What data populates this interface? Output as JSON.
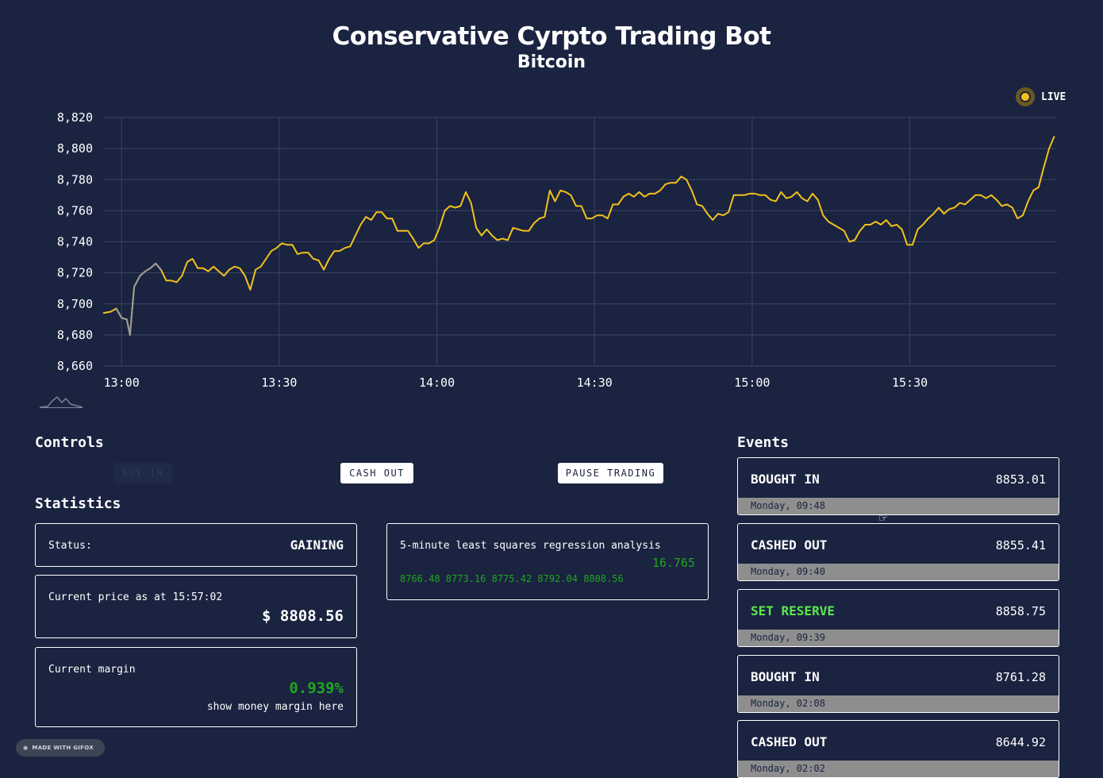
{
  "header": {
    "title": "Conservative Cyrpto Trading Bot",
    "subtitle": "Bitcoin"
  },
  "live": {
    "label": "LIVE",
    "color": "#f2c21b"
  },
  "chart_data": {
    "type": "line",
    "x_ticks": [
      "13:00",
      "13:30",
      "14:00",
      "14:30",
      "15:00",
      "15:30"
    ],
    "y_ticks": [
      "8,660",
      "8,680",
      "8,700",
      "8,720",
      "8,740",
      "8,760",
      "8,780",
      "8,800",
      "8,820"
    ],
    "ylim": [
      8660,
      8820
    ],
    "xlim_minutes": [
      -3.5,
      178
    ],
    "grid": true,
    "line_color": "#f2c21b",
    "highlight_color": "#9a9a9a",
    "highlight_range_minutes": [
      -1,
      8
    ],
    "points": [
      [
        -3.5,
        8694
      ],
      [
        -2,
        8695
      ],
      [
        -1,
        8697
      ],
      [
        0,
        8691
      ],
      [
        1,
        8690
      ],
      [
        1.6,
        8680
      ],
      [
        2.4,
        8711
      ],
      [
        3.5,
        8718
      ],
      [
        4.5,
        8721
      ],
      [
        5.5,
        8723
      ],
      [
        6.5,
        8726
      ],
      [
        7.5,
        8722
      ],
      [
        8.5,
        8715
      ],
      [
        9.5,
        8715
      ],
      [
        10.5,
        8714
      ],
      [
        11.5,
        8718
      ],
      [
        12.5,
        8727
      ],
      [
        13.5,
        8729
      ],
      [
        14.5,
        8723
      ],
      [
        15.5,
        8723
      ],
      [
        16.5,
        8721
      ],
      [
        17.5,
        8724
      ],
      [
        18.5,
        8721
      ],
      [
        19.5,
        8718
      ],
      [
        20.5,
        8722
      ],
      [
        21.5,
        8724
      ],
      [
        22.5,
        8723
      ],
      [
        23.5,
        8718
      ],
      [
        24.5,
        8709
      ],
      [
        25.5,
        8722
      ],
      [
        26.5,
        8724
      ],
      [
        27.5,
        8729
      ],
      [
        28.5,
        8734
      ],
      [
        29.5,
        8736
      ],
      [
        30.5,
        8739
      ],
      [
        31.5,
        8738
      ],
      [
        32.5,
        8738
      ],
      [
        33.5,
        8732
      ],
      [
        34.5,
        8733
      ],
      [
        35.5,
        8733
      ],
      [
        36.5,
        8729
      ],
      [
        37.5,
        8728
      ],
      [
        38.5,
        8722
      ],
      [
        39.5,
        8729
      ],
      [
        40.5,
        8734
      ],
      [
        41.5,
        8734
      ],
      [
        42.5,
        8736
      ],
      [
        43.5,
        8737
      ],
      [
        44.5,
        8744
      ],
      [
        45.5,
        8751
      ],
      [
        46.5,
        8756
      ],
      [
        47.5,
        8754
      ],
      [
        48.5,
        8759
      ],
      [
        49.5,
        8759
      ],
      [
        50.5,
        8755
      ],
      [
        51.5,
        8755
      ],
      [
        52.5,
        8747
      ],
      [
        53.5,
        8747
      ],
      [
        54.5,
        8747
      ],
      [
        55.5,
        8742
      ],
      [
        56.5,
        8736
      ],
      [
        57.5,
        8739
      ],
      [
        58.5,
        8739
      ],
      [
        59.5,
        8741
      ],
      [
        60.5,
        8749
      ],
      [
        61.5,
        8760
      ],
      [
        62.5,
        8763
      ],
      [
        63.5,
        8762
      ],
      [
        64.5,
        8763
      ],
      [
        65.5,
        8772
      ],
      [
        66.5,
        8765
      ],
      [
        67.5,
        8749
      ],
      [
        68.5,
        8744
      ],
      [
        69.5,
        8748
      ],
      [
        70.5,
        8744
      ],
      [
        71.5,
        8741
      ],
      [
        72.5,
        8742
      ],
      [
        73.5,
        8741
      ],
      [
        74.5,
        8749
      ],
      [
        75.5,
        8748
      ],
      [
        76.5,
        8747
      ],
      [
        77.5,
        8747
      ],
      [
        78.5,
        8752
      ],
      [
        79.5,
        8755
      ],
      [
        80.5,
        8756
      ],
      [
        81.5,
        8773
      ],
      [
        82.5,
        8766
      ],
      [
        83.5,
        8773
      ],
      [
        84.5,
        8772
      ],
      [
        85.5,
        8770
      ],
      [
        86.5,
        8763
      ],
      [
        87.5,
        8763
      ],
      [
        88.5,
        8755
      ],
      [
        89.5,
        8755
      ],
      [
        90.5,
        8757
      ],
      [
        91.5,
        8757
      ],
      [
        92.5,
        8755
      ],
      [
        93.5,
        8764
      ],
      [
        94.5,
        8764
      ],
      [
        95.5,
        8769
      ],
      [
        96.5,
        8771
      ],
      [
        97.5,
        8769
      ],
      [
        98.5,
        8772
      ],
      [
        99.5,
        8769
      ],
      [
        100.5,
        8771
      ],
      [
        101.5,
        8771
      ],
      [
        102.5,
        8773
      ],
      [
        103.5,
        8777
      ],
      [
        104.5,
        8778
      ],
      [
        105.5,
        8778
      ],
      [
        106.5,
        8782
      ],
      [
        107.5,
        8780
      ],
      [
        108.5,
        8773
      ],
      [
        109.5,
        8764
      ],
      [
        110.5,
        8763
      ],
      [
        111.5,
        8758
      ],
      [
        112.5,
        8754
      ],
      [
        113.5,
        8758
      ],
      [
        114.5,
        8757
      ],
      [
        115.5,
        8759
      ],
      [
        116.5,
        8770
      ],
      [
        117.5,
        8770
      ],
      [
        118.5,
        8770
      ],
      [
        119.5,
        8771
      ],
      [
        120.5,
        8771
      ],
      [
        121.5,
        8770
      ],
      [
        122.5,
        8770
      ],
      [
        123.5,
        8767
      ],
      [
        124.5,
        8766
      ],
      [
        125.5,
        8772
      ],
      [
        126.5,
        8768
      ],
      [
        127.5,
        8769
      ],
      [
        128.5,
        8772
      ],
      [
        129.5,
        8768
      ],
      [
        130.5,
        8766
      ],
      [
        131.5,
        8771
      ],
      [
        132.5,
        8767
      ],
      [
        133.5,
        8757
      ],
      [
        134.5,
        8753
      ],
      [
        135.5,
        8751
      ],
      [
        136.5,
        8749
      ],
      [
        137.5,
        8747
      ],
      [
        138.5,
        8740
      ],
      [
        139.5,
        8741
      ],
      [
        140.5,
        8747
      ],
      [
        141.5,
        8751
      ],
      [
        142.5,
        8751
      ],
      [
        143.5,
        8753
      ],
      [
        144.5,
        8751
      ],
      [
        145.5,
        8754
      ],
      [
        146.5,
        8750
      ],
      [
        147.5,
        8751
      ],
      [
        148.5,
        8748
      ],
      [
        149.5,
        8738
      ],
      [
        150.5,
        8738
      ],
      [
        151.5,
        8748
      ],
      [
        152.5,
        8751
      ],
      [
        153.5,
        8755
      ],
      [
        154.5,
        8758
      ],
      [
        155.5,
        8762
      ],
      [
        156.5,
        8758
      ],
      [
        157.5,
        8761
      ],
      [
        158.5,
        8762
      ],
      [
        159.5,
        8765
      ],
      [
        160.5,
        8764
      ],
      [
        161.5,
        8767
      ],
      [
        162.5,
        8770
      ],
      [
        163.5,
        8770
      ],
      [
        164.5,
        8768
      ],
      [
        165.5,
        8770
      ],
      [
        166.5,
        8767
      ],
      [
        167.5,
        8763
      ],
      [
        168.5,
        8764
      ],
      [
        169.5,
        8762
      ],
      [
        170.5,
        8755
      ],
      [
        171.5,
        8757
      ],
      [
        172.5,
        8766
      ],
      [
        173.5,
        8773
      ],
      [
        174.5,
        8775
      ],
      [
        175.5,
        8788
      ],
      [
        176.5,
        8800
      ],
      [
        177.5,
        8808
      ]
    ]
  },
  "controls": {
    "heading": "Controls",
    "buy_in": "BUY IN",
    "cash_out": "CASH OUT",
    "pause": "PAUSE TRADING"
  },
  "statistics": {
    "heading": "Statistics",
    "status_label": "Status:",
    "status_value": "GAINING",
    "price_label": "Current price as at 15:57:02",
    "price_value": "$ 8808.56",
    "margin_label": "Current margin",
    "margin_value": "0.939%",
    "margin_note": "show money margin here",
    "regression_label": "5-minute least squares regression analysis",
    "regression_value": "16.765",
    "regression_series": "8766.48 8773.16 8775.42 8792.04 8808.56"
  },
  "events": {
    "heading": "Events",
    "items": [
      {
        "title": "BOUGHT IN",
        "value": "8853.01",
        "time": "Monday, 09:48"
      },
      {
        "title": "CASHED OUT",
        "value": "8855.41",
        "time": "Monday, 09:40"
      },
      {
        "title": "SET RESERVE",
        "value": "8858.75",
        "time": "Monday, 09:39"
      },
      {
        "title": "BOUGHT IN",
        "value": "8761.28",
        "time": "Monday, 02:08"
      },
      {
        "title": "CASHED OUT",
        "value": "8644.92",
        "time": "Monday, 02:02"
      }
    ]
  },
  "badge": {
    "label": "MADE WITH GIFOX"
  }
}
